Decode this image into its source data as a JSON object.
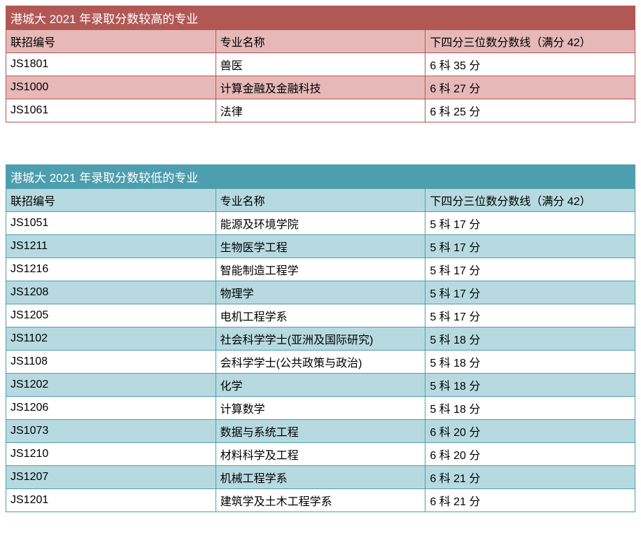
{
  "tables": [
    {
      "title": "港城大 2021 年录取分数较高的专业",
      "title_bg": "#b15855",
      "border_color": "#b15855",
      "header_bg": "#e6b9b8",
      "odd_bg": "#ffffff",
      "even_bg": "#e6b9b8",
      "columns": [
        "联招编号",
        "专业名称",
        "下四分三位数分数线（满分 42）"
      ],
      "rows": [
        [
          "JS1801",
          "兽医",
          "6 科 35 分"
        ],
        [
          "JS1000",
          "计算金融及金融科技",
          "6 科 27 分"
        ],
        [
          "JS1061",
          "法律",
          "6 科 25 分"
        ]
      ]
    },
    {
      "title": "港城大 2021 年录取分数较低的专业",
      "title_bg": "#4d9eae",
      "border_color": "#4d9eae",
      "header_bg": "#b7dae1",
      "odd_bg": "#ffffff",
      "even_bg": "#b7dae1",
      "columns": [
        "联招编号",
        "专业名称",
        "下四分三位数分数线（满分 42）"
      ],
      "rows": [
        [
          "JS1051",
          "能源及环境学院",
          "5 科 17 分"
        ],
        [
          "JS1211",
          "生物医学工程",
          "5 科 17 分"
        ],
        [
          "JS1216",
          "智能制造工程学",
          "5 科 17 分"
        ],
        [
          "JS1208",
          "物理学",
          "5 科 17 分"
        ],
        [
          "JS1205",
          "电机工程学系",
          "5 科 17 分"
        ],
        [
          "JS1102",
          "社会科学学士(亚洲及国际研究)",
          "5 科 18 分"
        ],
        [
          "JS1108",
          "会科学学士(公共政策与政治)",
          "5 科 18 分"
        ],
        [
          "JS1202",
          "化学",
          "5 科 18 分"
        ],
        [
          "JS1206",
          "计算数学",
          "5 科 18 分"
        ],
        [
          "JS1073",
          "数据与系统工程",
          "6 科 20 分"
        ],
        [
          "JS1210",
          "材料科学及工程",
          "6 科 20 分"
        ],
        [
          "JS1207",
          "机械工程学系",
          "6 科 21 分"
        ],
        [
          "JS1201",
          "建筑学及土木工程学系",
          "6 科 21 分"
        ]
      ]
    }
  ]
}
